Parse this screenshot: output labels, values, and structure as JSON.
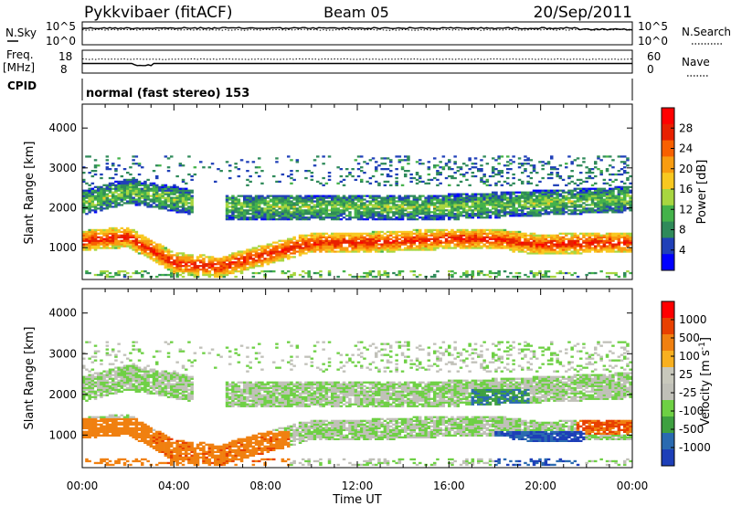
{
  "header": {
    "station": "Pykkvibaer (fitACF)",
    "beam": "Beam 05",
    "date": "20/Sep/2011"
  },
  "noise_panel": {
    "left_label": "N.Sky",
    "right_label": "N.Search",
    "left_ticks": [
      "10^5",
      "10^0"
    ],
    "right_ticks": [
      "10^5",
      "10^0"
    ]
  },
  "freq_panel": {
    "left_label_1": "Freq.",
    "left_label_2": "[MHz]",
    "right_label": "Nave",
    "left_ticks": [
      "18",
      "8"
    ],
    "right_ticks": [
      "60",
      "0"
    ]
  },
  "cpid": {
    "label": "CPID",
    "mode": "normal (fast stereo) 153"
  },
  "colors": {
    "power_scale": [
      "#0000ff",
      "#2040b8",
      "#2f8a5a",
      "#44b24a",
      "#a8d640",
      "#f8c820",
      "#f89c10",
      "#f86000",
      "#e82000",
      "#ff0000"
    ],
    "velocity_scale": [
      "#1d3fb8",
      "#2a6ab0",
      "#3ea040",
      "#6ed044",
      "#c0c0b8",
      "#c8c8bc",
      "#f8b020",
      "#f08010",
      "#e84000",
      "#ff0000"
    ]
  },
  "chart_data": [
    {
      "type": "heatmap",
      "name": "power-panel",
      "xlabel": "Time UT",
      "ylabel": "Slant Range [km]",
      "xlim": [
        0,
        24
      ],
      "ylim": [
        200,
        4600
      ],
      "x_ticks": [
        "00:00",
        "04:00",
        "08:00",
        "12:00",
        "16:00",
        "20:00",
        "00:00"
      ],
      "y_ticks": [
        1000,
        2000,
        3000,
        4000
      ],
      "colorbar": {
        "label": "Power [dB]",
        "ticks": [
          "28",
          "24",
          "20",
          "16",
          "12",
          "8",
          "4"
        ],
        "range": [
          0,
          32
        ]
      },
      "main_band_km": [
        [
          0,
          1150
        ],
        [
          2,
          1250
        ],
        [
          4,
          600
        ],
        [
          6,
          500
        ],
        [
          8,
          800
        ],
        [
          10,
          1100
        ],
        [
          12,
          1100
        ],
        [
          16,
          1200
        ],
        [
          18,
          1200
        ],
        [
          20,
          1050
        ],
        [
          22,
          1100
        ],
        [
          24,
          1100
        ]
      ],
      "upper_band_km": [
        [
          0,
          2100
        ],
        [
          2,
          2400
        ],
        [
          6,
          2000
        ],
        [
          12,
          2000
        ],
        [
          16,
          2000
        ],
        [
          20,
          2100
        ],
        [
          24,
          2200
        ]
      ]
    },
    {
      "type": "heatmap",
      "name": "velocity-panel",
      "xlabel": "Time UT",
      "ylabel": "Slant Range [km]",
      "xlim": [
        0,
        24
      ],
      "ylim": [
        200,
        4600
      ],
      "x_ticks": [
        "00:00",
        "04:00",
        "08:00",
        "12:00",
        "16:00",
        "20:00",
        "00:00"
      ],
      "y_ticks": [
        1000,
        2000,
        3000,
        4000
      ],
      "colorbar": {
        "label": "Velocity [m s",
        "label_sup": "-1",
        "label_end": "]",
        "ticks": [
          "1000",
          "500",
          "100",
          "25",
          "-25",
          "-100",
          "-500",
          "-1000"
        ]
      }
    }
  ]
}
